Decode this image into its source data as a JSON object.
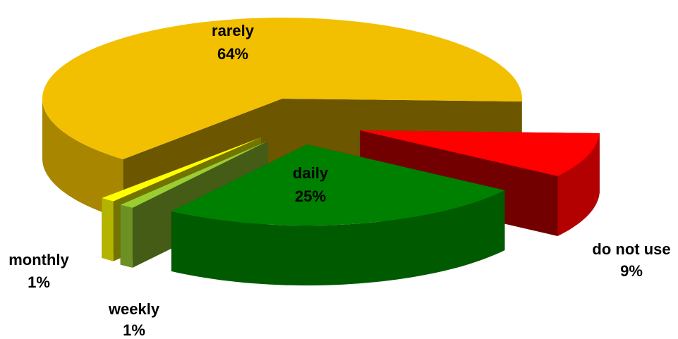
{
  "chart_data": {
    "type": "pie3d",
    "categories": [
      "rarely",
      "monthly",
      "weekly",
      "daily",
      "do not use"
    ],
    "values": [
      64,
      1,
      1,
      25,
      9
    ],
    "value_labels": [
      "64%",
      "1%",
      "1%",
      "25%",
      "9%"
    ],
    "colors": [
      "#f2c000",
      "#ffff00",
      "#9acd32",
      "#008000",
      "#ff0000"
    ]
  }
}
